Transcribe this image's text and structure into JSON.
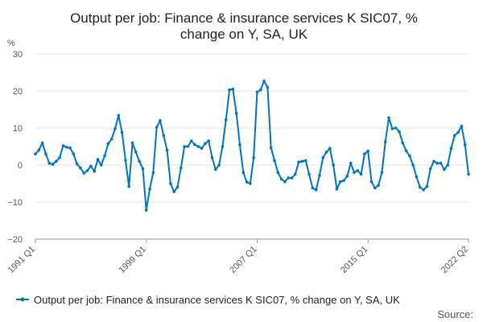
{
  "chart_data": {
    "type": "line",
    "title_line1": "Output per job: Finance & insurance services K SIC07, %",
    "title_line2": "change on Y, SA, UK",
    "ylabel": "%",
    "ylim": [
      -20,
      30
    ],
    "y_ticks": [
      30,
      20,
      10,
      0,
      -10,
      -20
    ],
    "grid": true,
    "legend_position": "bottom",
    "source_label": "Source:",
    "x_tick_labels": [
      "1991 Q1",
      "1999 Q1",
      "2007 Q1",
      "2015 Q1",
      "2022 Q2"
    ],
    "x_tick_index": [
      0,
      32,
      64,
      96,
      125
    ],
    "color": "#0075bc",
    "series": [
      {
        "name": "Output per job: Finance & insurance services K SIC07, % change on Y, SA, UK",
        "x_start": "1991 Q1",
        "x_end": "2022 Q2",
        "values": [
          3.0,
          4.0,
          6.0,
          3.0,
          0.5,
          0.2,
          1.0,
          2.0,
          5.2,
          4.8,
          4.6,
          3.0,
          0.3,
          -0.8,
          -2.2,
          -1.5,
          -0.3,
          -1.7,
          1.5,
          0.0,
          2.5,
          5.8,
          7.0,
          9.8,
          13.4,
          8.8,
          1.3,
          -5.8,
          6.0,
          3.5,
          1.0,
          -1.0,
          -12.2,
          -6.5,
          -2.0,
          10.2,
          12.0,
          8.0,
          4.0,
          -5.0,
          -7.2,
          -6.0,
          -0.8,
          5.0,
          5.0,
          6.5,
          5.5,
          5.0,
          4.5,
          5.8,
          6.5,
          2.0,
          -1.2,
          0.0,
          5.0,
          12.2,
          20.3,
          20.5,
          14.0,
          5.5,
          -2.0,
          -4.6,
          -5.0,
          2.0,
          19.7,
          20.3,
          22.7,
          21.0,
          4.7,
          1.2,
          -2.0,
          -3.8,
          -4.5,
          -3.5,
          -3.5,
          -2.5,
          0.8,
          1.0,
          1.2,
          -2.5,
          -6.2,
          -6.7,
          -2.8,
          2.0,
          3.5,
          4.5,
          0.0,
          -6.5,
          -4.5,
          -4.2,
          -3.0,
          0.5,
          -2.0,
          -1.5,
          -2.5,
          3.0,
          3.8,
          -4.5,
          -6.2,
          -5.5,
          -2.0,
          6.2,
          12.8,
          9.8,
          10.0,
          9.0,
          6.0,
          3.8,
          2.5,
          0.0,
          -3.2,
          -6.0,
          -6.7,
          -5.8,
          -1.0,
          1.0,
          0.5,
          0.5,
          -1.2,
          0.0,
          4.5,
          8.0,
          8.8,
          10.5,
          5.5,
          -2.5
        ]
      }
    ]
  }
}
